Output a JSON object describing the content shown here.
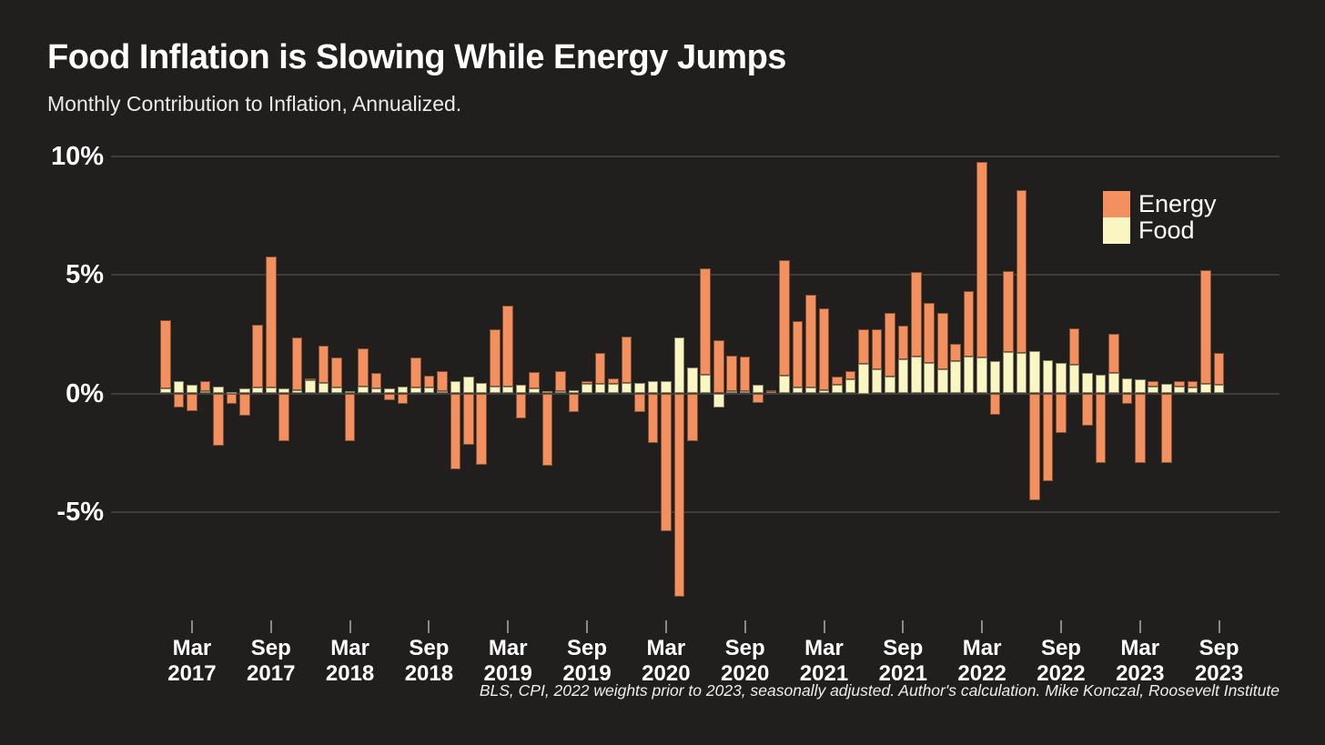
{
  "title": "Food Inflation is Slowing While Energy Jumps",
  "subtitle": "Monthly Contribution to Inflation, Annualized.",
  "footnote": "BLS, CPI, 2022 weights prior to 2023, seasonally adjusted. Author's calculation. Mike Konczal, Roosevelt Institute",
  "legend": {
    "energy_label": "Energy",
    "food_label": "Food"
  },
  "colors": {
    "background": "#201f1e",
    "energy": "#F2915F",
    "food": "#FAF6C3",
    "gridline": "#3e3d3b",
    "text": "#ffffff"
  },
  "chart_data": {
    "type": "bar",
    "stacked": true,
    "title": "Food Inflation is Slowing While Energy Jumps",
    "subtitle": "Monthly Contribution to Inflation, Annualized.",
    "unit": "percent, annualized monthly contribution to inflation",
    "grid": "horizontal",
    "legend_position": "top-right",
    "ylim": [
      -9.5,
      10.5
    ],
    "y_ticks": [
      "10%",
      "5%",
      "0%",
      "-5%"
    ],
    "y_tick_values": [
      10,
      5,
      0,
      -5
    ],
    "x_tick_labels": [
      [
        "Mar",
        "2017"
      ],
      [
        "Sep",
        "2017"
      ],
      [
        "Mar",
        "2018"
      ],
      [
        "Sep",
        "2018"
      ],
      [
        "Mar",
        "2019"
      ],
      [
        "Sep",
        "2019"
      ],
      [
        "Mar",
        "2020"
      ],
      [
        "Sep",
        "2020"
      ],
      [
        "Mar",
        "2021"
      ],
      [
        "Sep",
        "2021"
      ],
      [
        "Mar",
        "2022"
      ],
      [
        "Sep",
        "2022"
      ],
      [
        "Mar",
        "2023"
      ],
      [
        "Sep",
        "2023"
      ]
    ],
    "x": [
      "Jan 2017",
      "Feb 2017",
      "Mar 2017",
      "Apr 2017",
      "May 2017",
      "Jun 2017",
      "Jul 2017",
      "Aug 2017",
      "Sep 2017",
      "Oct 2017",
      "Nov 2017",
      "Dec 2017",
      "Jan 2018",
      "Feb 2018",
      "Mar 2018",
      "Apr 2018",
      "May 2018",
      "Jun 2018",
      "Jul 2018",
      "Aug 2018",
      "Sep 2018",
      "Oct 2018",
      "Nov 2018",
      "Dec 2018",
      "Jan 2019",
      "Feb 2019",
      "Mar 2019",
      "Apr 2019",
      "May 2019",
      "Jun 2019",
      "Jul 2019",
      "Aug 2019",
      "Sep 2019",
      "Oct 2019",
      "Nov 2019",
      "Dec 2019",
      "Jan 2020",
      "Feb 2020",
      "Mar 2020",
      "Apr 2020",
      "May 2020",
      "Jun 2020",
      "Jul 2020",
      "Aug 2020",
      "Sep 2020",
      "Oct 2020",
      "Nov 2020",
      "Dec 2020",
      "Jan 2021",
      "Feb 2021",
      "Mar 2021",
      "Apr 2021",
      "May 2021",
      "Jun 2021",
      "Jul 2021",
      "Aug 2021",
      "Sep 2021",
      "Oct 2021",
      "Nov 2021",
      "Dec 2021",
      "Jan 2022",
      "Feb 2022",
      "Mar 2022",
      "Apr 2022",
      "May 2022",
      "Jun 2022",
      "Jul 2022",
      "Aug 2022",
      "Sep 2022",
      "Oct 2022",
      "Nov 2022",
      "Dec 2022",
      "Jan 2023",
      "Feb 2023",
      "Mar 2023",
      "Apr 2023",
      "May 2023",
      "Jun 2023",
      "Jul 2023",
      "Aug 2023",
      "Sep 2023"
    ],
    "series": [
      {
        "name": "Food",
        "color": "#FAF6C3",
        "values": [
          0.2,
          0.5,
          0.35,
          0.1,
          0.3,
          0.05,
          0.2,
          0.25,
          0.25,
          0.2,
          0.15,
          0.55,
          0.45,
          0.25,
          0.1,
          0.3,
          0.2,
          0.2,
          0.3,
          0.25,
          0.25,
          0.1,
          0.5,
          0.7,
          0.45,
          0.3,
          0.3,
          0.35,
          0.2,
          0.1,
          0.1,
          0.15,
          0.4,
          0.4,
          0.4,
          0.45,
          0.45,
          0.5,
          0.5,
          2.35,
          1.1,
          0.8,
          -0.6,
          0.1,
          0.1,
          0.35,
          0.1,
          0.75,
          0.25,
          0.25,
          0.15,
          0.35,
          0.6,
          1.25,
          1.0,
          0.7,
          1.45,
          1.55,
          1.3,
          1.0,
          1.35,
          1.55,
          1.5,
          1.35,
          1.75,
          1.7,
          1.8,
          1.4,
          1.3,
          1.2,
          0.85,
          0.8,
          0.85,
          0.65,
          0.6,
          0.3,
          0.4,
          0.3,
          0.25,
          0.4,
          0.35
        ]
      },
      {
        "name": "Energy",
        "color": "#F2915F",
        "values": [
          2.9,
          -0.6,
          -0.75,
          0.4,
          -2.2,
          -0.45,
          -0.95,
          2.65,
          5.5,
          -2.0,
          2.2,
          0.1,
          1.55,
          1.25,
          -2.0,
          1.6,
          0.65,
          -0.3,
          -0.45,
          1.25,
          0.5,
          0.85,
          -3.2,
          -2.15,
          -3.0,
          2.4,
          3.4,
          -1.05,
          0.7,
          -3.05,
          0.85,
          -0.8,
          0.1,
          1.3,
          0.25,
          1.95,
          -0.8,
          -2.1,
          -5.8,
          -8.55,
          -2.0,
          4.45,
          2.25,
          1.5,
          1.45,
          -0.4,
          0.05,
          4.85,
          2.8,
          3.9,
          3.45,
          0.35,
          0.35,
          1.45,
          1.7,
          2.7,
          1.4,
          3.55,
          2.5,
          2.4,
          0.75,
          2.75,
          8.25,
          -0.9,
          3.4,
          6.85,
          -4.5,
          -3.7,
          -1.65,
          1.55,
          -1.35,
          -2.95,
          1.65,
          -0.45,
          -2.95,
          0.2,
          -2.95,
          0.2,
          0.25,
          4.8,
          1.35
        ]
      }
    ]
  }
}
